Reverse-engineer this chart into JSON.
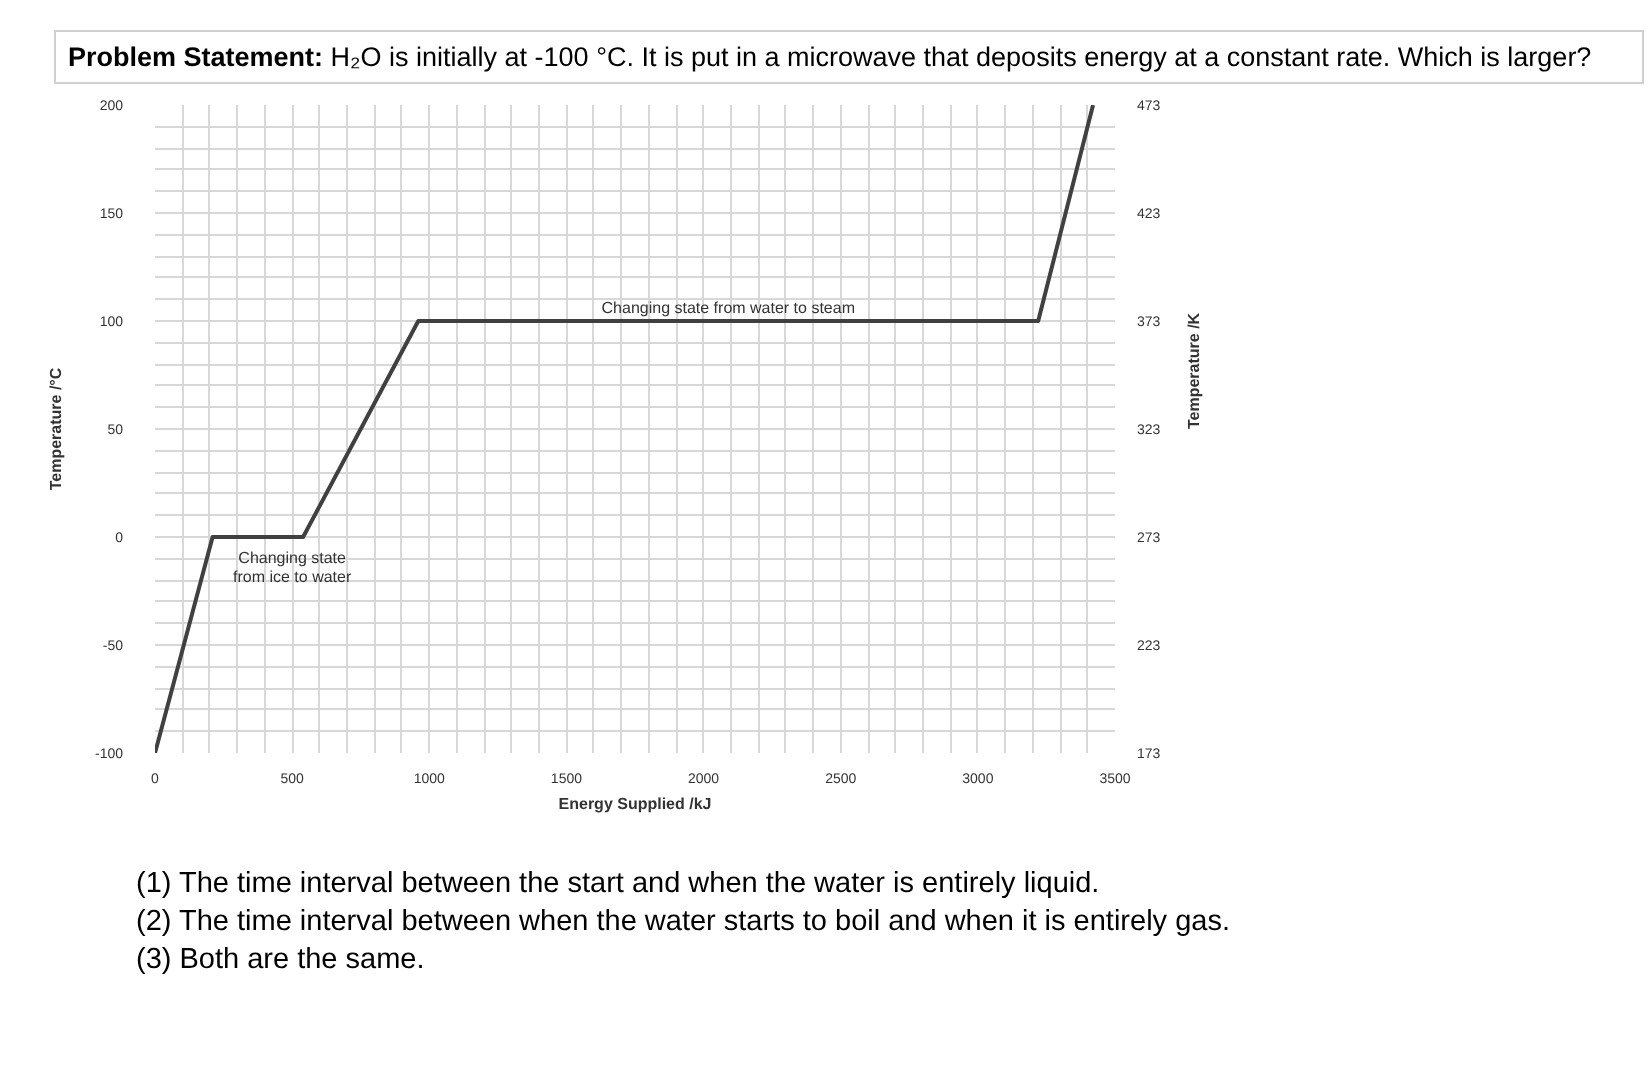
{
  "chart_data": {
    "type": "line",
    "title": "Problem Statement: H₂O is initially at -100 °C. It is put in a microwave that deposits energy at a constant rate. Which is larger?",
    "xlabel": "Energy Supplied /kJ",
    "ylabel": "Temperature /°C",
    "y2label": "Temperature /K",
    "x": [
      0,
      210,
      540,
      960,
      3220,
      3420
    ],
    "series": [
      {
        "color": "#404040",
        "values": [
          -100,
          0,
          0,
          100,
          100,
          200
        ]
      }
    ],
    "xlim": [
      0,
      3500
    ],
    "ylim": [
      -100,
      200
    ],
    "y2lim": [
      173,
      473
    ],
    "xticks": [
      0,
      {
        "value": 100,
        "label": null
      },
      {
        "value": 200,
        "label": null
      },
      {
        "value": 300,
        "label": null
      },
      {
        "value": 400,
        "label": null
      },
      500,
      {
        "value": 600,
        "label": null
      },
      {
        "value": 700,
        "label": null
      },
      {
        "value": 800,
        "label": null
      },
      {
        "value": 900,
        "label": null
      },
      1000,
      {
        "value": 1100,
        "label": null
      },
      {
        "value": 1200,
        "label": null
      },
      {
        "value": 1300,
        "label": null
      },
      {
        "value": 1400,
        "label": null
      },
      1500,
      {
        "value": 1600,
        "label": null
      },
      {
        "value": 1700,
        "label": null
      },
      {
        "value": 1800,
        "label": null
      },
      {
        "value": 1900,
        "label": null
      },
      2000,
      {
        "value": 2100,
        "label": null
      },
      {
        "value": 2200,
        "label": null
      },
      {
        "value": 2300,
        "label": null
      },
      {
        "value": 2400,
        "label": null
      },
      2500,
      {
        "value": 2600,
        "label": null
      },
      {
        "value": 2700,
        "label": null
      },
      {
        "value": 2800,
        "label": null
      },
      {
        "value": 2900,
        "label": null
      },
      3000,
      {
        "value": 3100,
        "label": null
      },
      {
        "value": 3200,
        "label": null
      },
      {
        "value": 3300,
        "label": null
      },
      {
        "value": 3400,
        "label": null
      },
      3500
    ],
    "yticks": [
      -100,
      {
        "value": -90,
        "label": null
      },
      {
        "value": -80,
        "label": null
      },
      {
        "value": -70,
        "label": null
      },
      {
        "value": -60,
        "label": null
      },
      -50,
      {
        "value": -40,
        "label": null
      },
      {
        "value": -30,
        "label": null
      },
      {
        "value": -20,
        "label": null
      },
      {
        "value": -10,
        "label": null
      },
      0,
      {
        "value": 10,
        "label": null
      },
      {
        "value": 20,
        "label": null
      },
      {
        "value": 30,
        "label": null
      },
      {
        "value": 40,
        "label": null
      },
      50,
      {
        "value": 60,
        "label": null
      },
      {
        "value": 70,
        "label": null
      },
      {
        "value": 80,
        "label": null
      },
      {
        "value": 90,
        "label": null
      },
      100,
      {
        "value": 110,
        "label": null
      },
      {
        "value": 120,
        "label": null
      },
      {
        "value": 130,
        "label": null
      },
      {
        "value": 140,
        "label": null
      },
      150,
      {
        "value": 160,
        "label": null
      },
      {
        "value": 170,
        "label": null
      },
      {
        "value": 180,
        "label": null
      },
      {
        "value": 190,
        "label": null
      },
      200
    ],
    "y2ticks": [
      173,
      223,
      273,
      323,
      373,
      423,
      473
    ],
    "grid": true,
    "annotations": [
      {
        "text": "Changing state\nfrom ice to water",
        "x": 500,
        "y": 0
      },
      {
        "text": "Changing state from water to steam",
        "x": 2090,
        "y": 100
      },
      "(1) The time interval between the start and when the water is entirely liquid.",
      "(2) The time interval between when the water starts to boil and when it is entirely gas.",
      "(3) Both are the same."
    ]
  }
}
